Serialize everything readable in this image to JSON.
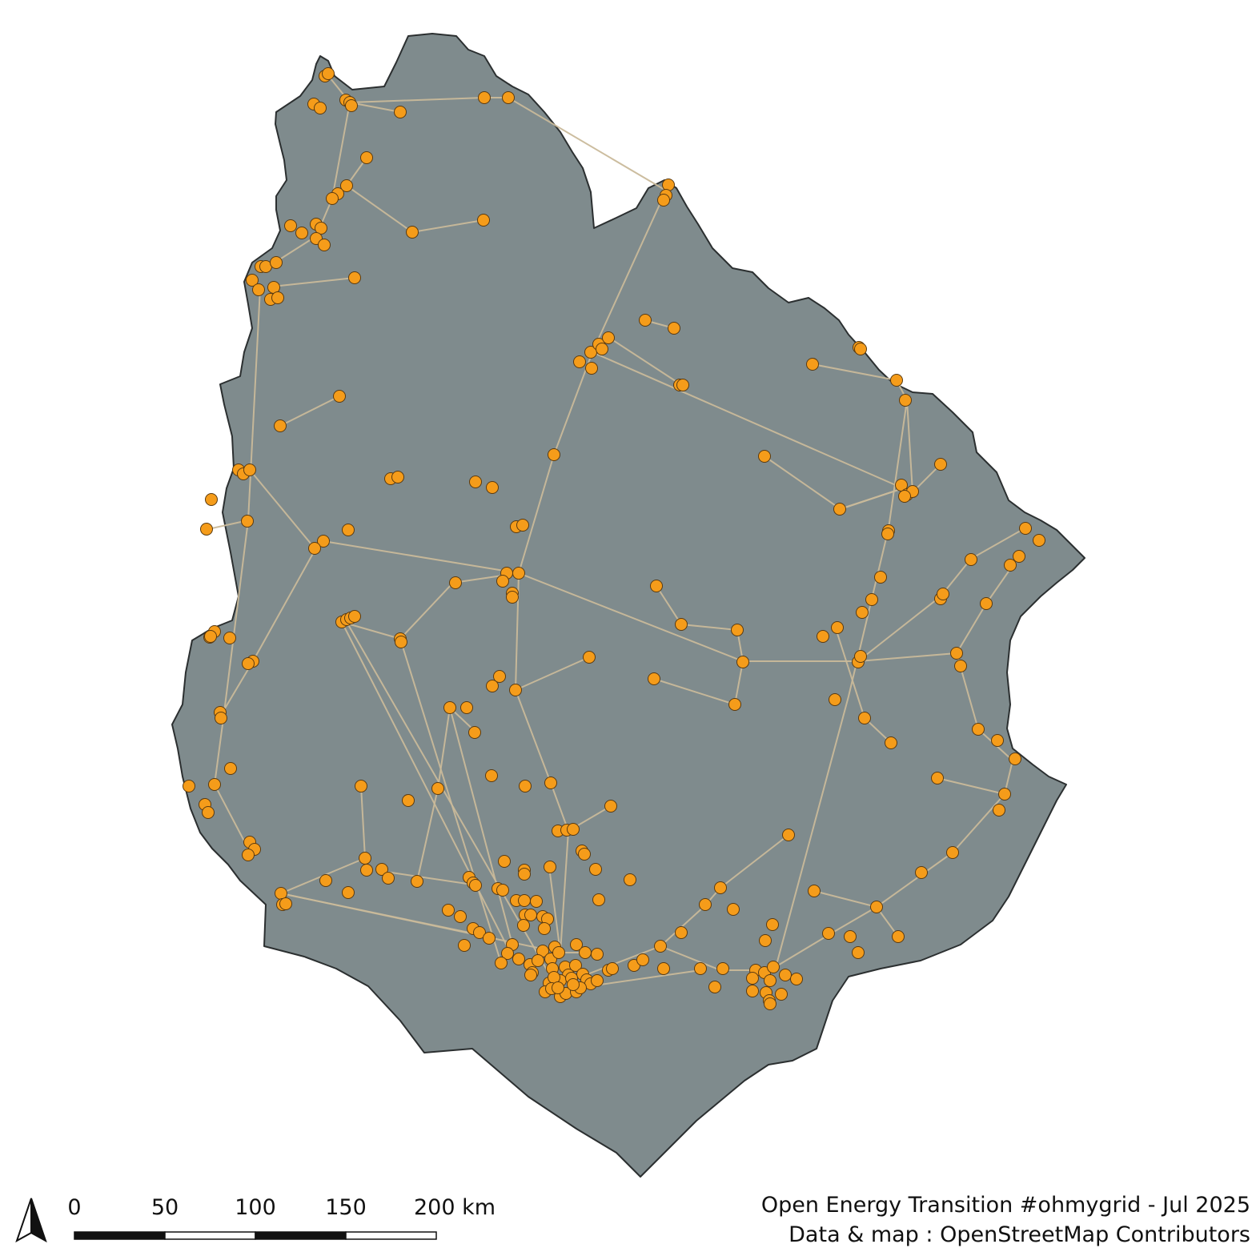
{
  "map": {
    "fill_color": "#7f8b8d",
    "border_color": "#2b2f30",
    "line_color": "#c9b99a",
    "substation_color": "#f59c1a",
    "layers": [
      "country-outline",
      "power-lines",
      "substations"
    ]
  },
  "north_arrow": {
    "icon": "north-arrow-icon"
  },
  "scale_bar": {
    "labels": [
      "0",
      "50",
      "100",
      "150",
      "200 km"
    ],
    "segment_colors": [
      "#111111",
      "#ffffff",
      "#111111",
      "#ffffff"
    ]
  },
  "credits": {
    "line1": "Open Energy Transition #ohmygrid - Jul 2025",
    "line2": "Data & map : OpenStreetMap Contributors"
  }
}
